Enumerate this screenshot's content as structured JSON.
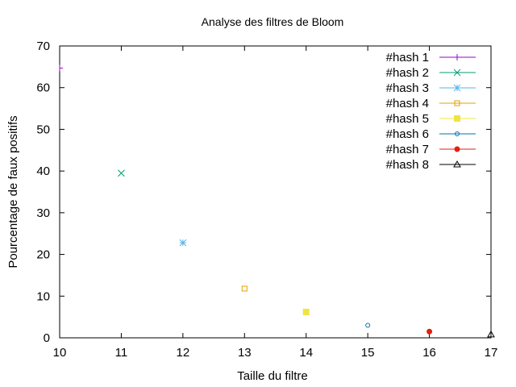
{
  "chart_data": {
    "type": "scatter",
    "title": "Analyse des filtres de Bloom",
    "xlabel": "Taille du filtre",
    "ylabel": "Pourcentage de faux positifs",
    "xlim": [
      10,
      17
    ],
    "ylim": [
      0,
      70
    ],
    "xticks": [
      10,
      11,
      12,
      13,
      14,
      15,
      16,
      17
    ],
    "yticks": [
      0,
      10,
      20,
      30,
      40,
      50,
      60,
      70
    ],
    "grid": false,
    "legend_position": "top-right",
    "series": [
      {
        "name": "#hash 1",
        "color": "#9400d3",
        "marker": "plus",
        "points": [
          [
            10,
            64.7
          ]
        ]
      },
      {
        "name": "#hash 2",
        "color": "#009e73",
        "marker": "cross",
        "points": [
          [
            11,
            39.5
          ]
        ]
      },
      {
        "name": "#hash 3",
        "color": "#56b4e9",
        "marker": "star",
        "points": [
          [
            12,
            22.8
          ]
        ]
      },
      {
        "name": "#hash 4",
        "color": "#e69f00",
        "marker": "square-open",
        "points": [
          [
            13,
            11.8
          ]
        ]
      },
      {
        "name": "#hash 5",
        "color": "#f0e442",
        "marker": "square-filled",
        "points": [
          [
            14,
            6.2
          ]
        ]
      },
      {
        "name": "#hash 6",
        "color": "#0072b2",
        "marker": "circle-open",
        "points": [
          [
            15,
            3.0
          ]
        ]
      },
      {
        "name": "#hash 7",
        "color": "#e51e10",
        "marker": "circle-filled",
        "points": [
          [
            16,
            1.5
          ]
        ]
      },
      {
        "name": "#hash 8",
        "color": "#000000",
        "marker": "triangle-open",
        "points": [
          [
            17,
            0.8
          ]
        ]
      }
    ]
  }
}
